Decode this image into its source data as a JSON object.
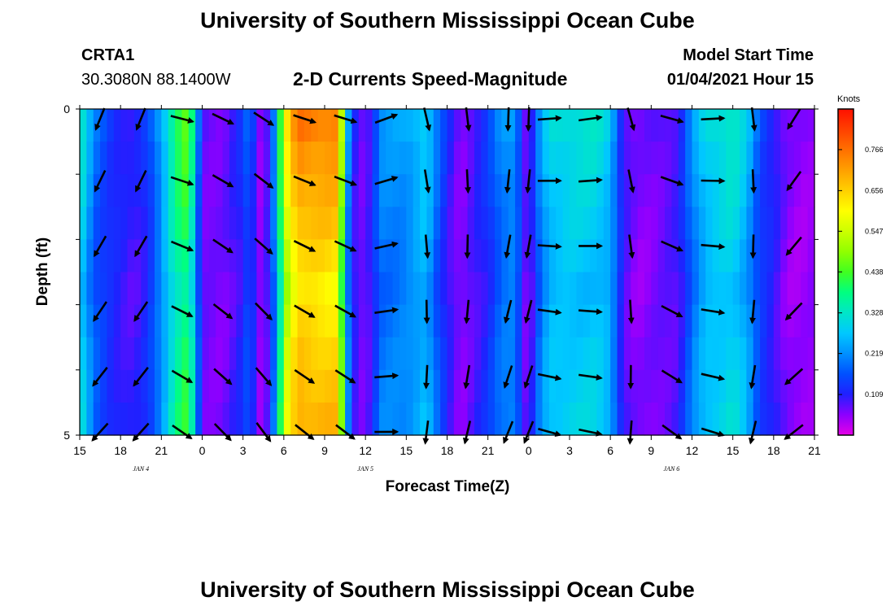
{
  "header": {
    "title_top": "University of Southern Mississippi Ocean Cube",
    "title_bottom": "University of Southern Mississippi Ocean Cube",
    "station_id": "CRTA1",
    "station_coords": "30.3080N 88.1400W",
    "model_start_label": "Model Start Time",
    "model_start_value": "01/04/2021 Hour 15"
  },
  "chart_data": {
    "type": "heatmap",
    "title": "2-D Currents Speed-Magnitude",
    "xlabel": "Forecast Time(Z)",
    "ylabel": "Depth (ft)",
    "x_ticks": [
      "15",
      "18",
      "21",
      "0",
      "3",
      "6",
      "9",
      "12",
      "15",
      "18",
      "21",
      "0",
      "3",
      "6",
      "9",
      "12",
      "15",
      "18",
      "21"
    ],
    "x_tick_hours": [
      0,
      3,
      6,
      9,
      12,
      15,
      18,
      21,
      24,
      27,
      30,
      33,
      36,
      39,
      42,
      45,
      48,
      51,
      54
    ],
    "day_labels": [
      {
        "label": "JAN 4",
        "hour": 4.5
      },
      {
        "label": "JAN 5",
        "hour": 21
      },
      {
        "label": "JAN 6",
        "hour": 43.5
      }
    ],
    "y_ticks": [
      "0",
      "5"
    ],
    "ylim": [
      0,
      5
    ],
    "xlim": [
      0,
      54
    ],
    "colorbar": {
      "unit": "Knots",
      "ticks": [
        "0.766",
        "0.656",
        "0.547",
        "0.438",
        "0.328",
        "0.219",
        "0.109"
      ],
      "tick_values": [
        0.766,
        0.656,
        0.547,
        0.438,
        0.328,
        0.219,
        0.109
      ],
      "range": [
        0,
        0.875
      ],
      "colors": [
        "#e600e6",
        "#8c00ff",
        "#2020ff",
        "#0050ff",
        "#0090ff",
        "#00c8ff",
        "#00e6c8",
        "#00ff80",
        "#40ff20",
        "#90ff00",
        "#ccff00",
        "#ffff00",
        "#ffd000",
        "#ffa000",
        "#ff7000",
        "#ff4000",
        "#ff1000"
      ]
    },
    "time_step_hours": 0.5,
    "depth_rows": 5,
    "speed_profile_knots": [
      [
        0,
        0.34
      ],
      [
        0.4,
        0.3
      ],
      [
        1,
        0.2
      ],
      [
        2,
        0.15
      ],
      [
        3,
        0.12
      ],
      [
        4,
        0.1
      ],
      [
        5,
        0.14
      ],
      [
        6,
        0.25
      ],
      [
        7,
        0.4
      ],
      [
        8,
        0.47
      ],
      [
        8.5,
        0.28
      ],
      [
        9,
        0.08
      ],
      [
        10.5,
        0.07
      ],
      [
        12,
        0.13
      ],
      [
        12.5,
        0.2
      ],
      [
        13,
        0.07
      ],
      [
        13.5,
        0.05
      ],
      [
        14,
        0.14
      ],
      [
        14.5,
        0.28
      ],
      [
        15,
        0.58
      ],
      [
        16,
        0.76
      ],
      [
        19,
        0.74
      ],
      [
        19.5,
        0.3
      ],
      [
        20,
        0.15
      ],
      [
        20.5,
        0.07
      ],
      [
        21.5,
        0.11
      ],
      [
        22,
        0.22
      ],
      [
        24,
        0.24
      ],
      [
        25,
        0.28
      ],
      [
        25.5,
        0.3
      ],
      [
        26,
        0.22
      ],
      [
        27,
        0.12
      ],
      [
        28,
        0.06
      ],
      [
        29,
        0.1
      ],
      [
        30,
        0.14
      ],
      [
        31,
        0.22
      ],
      [
        32,
        0.24
      ],
      [
        32.5,
        0.12
      ],
      [
        33,
        0.05
      ],
      [
        33.5,
        0.18
      ],
      [
        34.5,
        0.3
      ],
      [
        36,
        0.32
      ],
      [
        38,
        0.32
      ],
      [
        39,
        0.28
      ],
      [
        39.5,
        0.18
      ],
      [
        40,
        0.1
      ],
      [
        41,
        0.06
      ],
      [
        42,
        0.07
      ],
      [
        44,
        0.1
      ],
      [
        45,
        0.22
      ],
      [
        46,
        0.3
      ],
      [
        48,
        0.34
      ],
      [
        49,
        0.28
      ],
      [
        50,
        0.16
      ],
      [
        51,
        0.12
      ],
      [
        52,
        0.06
      ],
      [
        53,
        0.05
      ],
      [
        54,
        0.06
      ]
    ],
    "depth_speed_factor": [
      1.0,
      0.96,
      0.93,
      0.9,
      0.86,
      0.82,
      0.85,
      0.88,
      0.9,
      0.92
    ],
    "direction_profile_deg": [
      [
        0,
        210
      ],
      [
        3,
        210
      ],
      [
        6,
        210
      ],
      [
        7,
        110
      ],
      [
        9,
        120
      ],
      [
        11,
        125
      ],
      [
        13,
        135
      ],
      [
        15,
        120
      ],
      [
        17,
        115
      ],
      [
        19,
        120
      ],
      [
        21,
        100
      ],
      [
        22,
        80
      ],
      [
        24,
        70
      ],
      [
        26,
        210
      ],
      [
        28,
        200
      ],
      [
        30,
        125
      ],
      [
        31.5,
        190
      ],
      [
        33,
        190
      ],
      [
        34,
        95
      ],
      [
        36,
        90
      ],
      [
        39,
        90
      ],
      [
        41,
        200
      ],
      [
        42,
        185
      ],
      [
        44,
        90
      ],
      [
        46,
        95
      ],
      [
        48,
        95
      ],
      [
        50,
        210
      ],
      [
        52,
        220
      ],
      [
        54,
        220
      ]
    ],
    "arrow_times": [
      1.5,
      4.5,
      7.5,
      10.5,
      13.5,
      16.5,
      19.5,
      22.5,
      25.5,
      28.5,
      31.5,
      33,
      34.5,
      37.5,
      40.5,
      43.5,
      46.5,
      49.5,
      52.5
    ],
    "arrow_depths": [
      0.15,
      1.1,
      2.1,
      3.1,
      4.1,
      4.95
    ]
  }
}
